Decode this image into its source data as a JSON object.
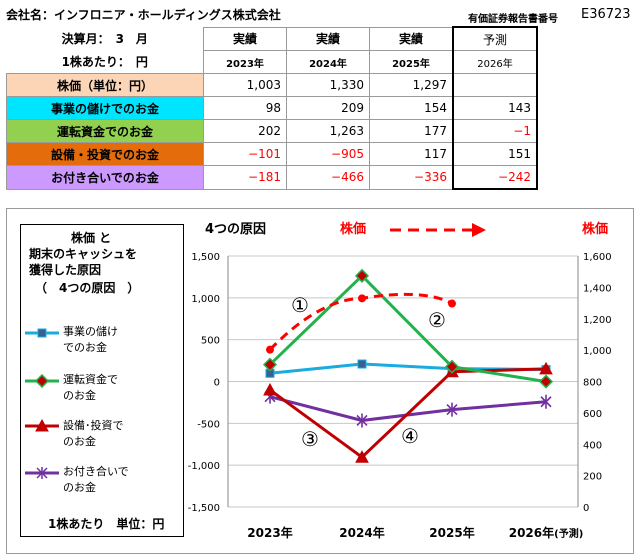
{
  "header": {
    "company": "会社名：インフロニア・ホールディングス株式会社",
    "report_label": "有価証券報告書番号",
    "report_code": "E36723",
    "fiscal_month": "決算月：　3　月",
    "per_share": "1株あたり：　円"
  },
  "table": {
    "columns": [
      {
        "kind": "実績",
        "year": "2023年"
      },
      {
        "kind": "実績",
        "year": "2024年"
      },
      {
        "kind": "実績",
        "year": "2025年"
      },
      {
        "kind": "予測",
        "year": "2026年"
      }
    ],
    "rows": [
      {
        "label": "株価（単位：円）",
        "values": [
          "1,003",
          "1,330",
          "1,297",
          ""
        ],
        "bg": "#fbd5b5"
      },
      {
        "label": "事業の儲けでのお金",
        "values": [
          "98",
          "209",
          "154",
          "143"
        ],
        "bg": "#00e5ff"
      },
      {
        "label": "運転資金でのお金",
        "values": [
          "202",
          "1,263",
          "177",
          "−1"
        ],
        "bg": "#92d050"
      },
      {
        "label": "設備・投資でのお金",
        "values": [
          "−101",
          "−905",
          "117",
          "151"
        ],
        "bg": "#e46c0a"
      },
      {
        "label": "お付き合いでのお金",
        "values": [
          "−181",
          "−466",
          "−336",
          "−242"
        ],
        "bg": "#cc99ff"
      }
    ]
  },
  "legend": {
    "title_lines": [
      "株価 と",
      "期末のキャッシュを",
      "獲得した原因",
      "（　4つの原因　）"
    ],
    "items": [
      {
        "lines": [
          "事業の儲け",
          "でのお金"
        ],
        "color": "#1aabe0",
        "marker": "square"
      },
      {
        "lines": [
          "運転資金で",
          "のお金"
        ],
        "color": "#22b14c",
        "marker": "diamond"
      },
      {
        "lines": [
          "設備･投資で",
          "のお金"
        ],
        "color": "#c00000",
        "marker": "triangle"
      },
      {
        "lines": [
          "お付き合いで",
          "のお金"
        ],
        "color": "#7030a0",
        "marker": "star"
      }
    ],
    "unit": "1株あたり　単位：円"
  },
  "chart_data": {
    "type": "line",
    "title": "4つの原因",
    "right_title": "株価",
    "arrow_label": "株価",
    "categories": [
      "2023年",
      "2024年",
      "2025年",
      "2026年(予測)"
    ],
    "category_main": [
      "2023年",
      "2024年",
      "2025年",
      "2026年"
    ],
    "category_suffix": [
      "",
      "",
      "",
      "(予測)"
    ],
    "ylim": [
      -1500,
      1500
    ],
    "yticks": [
      -1500,
      -1000,
      -500,
      0,
      500,
      1000,
      1500
    ],
    "ytick_labels": [
      "-1,500",
      "-1,000",
      "-500",
      "0",
      "500",
      "1,000",
      "1,500"
    ],
    "y2lim": [
      0,
      1600
    ],
    "y2ticks": [
      0,
      200,
      400,
      600,
      800,
      1000,
      1200,
      1400,
      1600
    ],
    "y2tick_labels": [
      "0",
      "200",
      "400",
      "600",
      "800",
      "1,000",
      "1,200",
      "1,400",
      "1,600"
    ],
    "grid": true,
    "series": [
      {
        "name": "事業の儲けでのお金",
        "values": [
          98,
          209,
          154,
          143
        ],
        "color": "#1aabe0",
        "marker": "square"
      },
      {
        "name": "運転資金でのお金",
        "values": [
          202,
          1263,
          177,
          -1
        ],
        "color": "#22b14c",
        "marker": "diamond"
      },
      {
        "name": "設備･投資でのお金",
        "values": [
          -101,
          -905,
          117,
          151
        ],
        "color": "#c00000",
        "marker": "triangle"
      },
      {
        "name": "お付き合いでのお金",
        "values": [
          -181,
          -466,
          -336,
          -242
        ],
        "color": "#7030a0",
        "marker": "star"
      }
    ],
    "stock_price": {
      "axis": "right",
      "values": [
        1003,
        1330,
        1297
      ],
      "color": "#ff0000",
      "style": "dashed"
    },
    "annotations": [
      "①",
      "②",
      "③",
      "④"
    ]
  }
}
